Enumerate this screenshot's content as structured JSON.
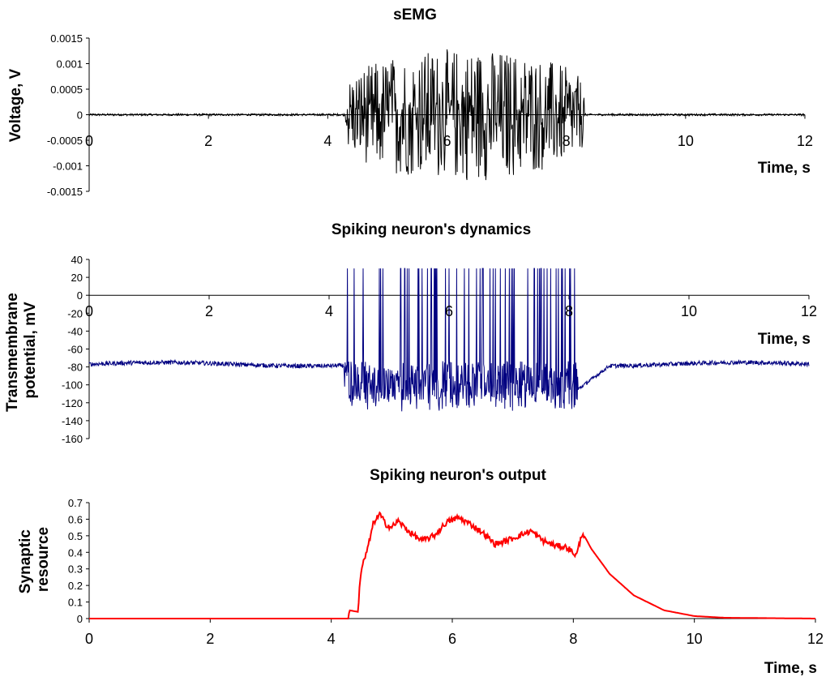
{
  "chart_data": [
    {
      "type": "line",
      "title": "sEMG",
      "ylabel": "Voltage, V",
      "xlabel": "Time, s",
      "xlim": [
        0,
        12
      ],
      "ylim": [
        -0.0015,
        0.0015
      ],
      "xticks": [
        "0",
        "2",
        "4",
        "6",
        "8",
        "10",
        "12"
      ],
      "yticks": [
        "0.0015",
        "0.001",
        "0.0005",
        "0",
        "-0.0005",
        "-0.001",
        "-0.0015"
      ],
      "color": "#000000",
      "baseline_noise": 2e-05,
      "burst": {
        "start": 4.3,
        "end": 8.3,
        "amplitude": 0.0013,
        "mean": 0
      },
      "x": [
        0,
        4.3,
        4.4,
        5.0,
        5.9,
        6.0,
        7.9,
        8.0,
        8.3,
        12
      ],
      "y": [
        0,
        0,
        0.0011,
        0.0011,
        -0.0013,
        0.00127,
        0.0011,
        -0.0011,
        0,
        0
      ]
    },
    {
      "type": "line",
      "title": "Spiking neuron's dynamics",
      "ylabel_lines": [
        "Transmembrane",
        "potential, mV"
      ],
      "xlabel": "Time, s",
      "xlim": [
        0,
        12
      ],
      "ylim": [
        -160,
        40
      ],
      "xticks": [
        "0",
        "2",
        "4",
        "6",
        "8",
        "10",
        "12"
      ],
      "yticks": [
        "40",
        "20",
        "0",
        "-20",
        "-40",
        "-60",
        "-80",
        "-100",
        "-120",
        "-140",
        "-160"
      ],
      "color": "#000080",
      "resting_level": -77,
      "spike_peak": 30,
      "burst": {
        "start": 4.25,
        "end": 8.15,
        "floor": -130,
        "mean": -95
      },
      "x": [
        0,
        2,
        3,
        4,
        4.2,
        4.25,
        6.0,
        8.15,
        8.5,
        10,
        11,
        12
      ],
      "y": [
        -77,
        -75,
        -72,
        -72,
        -75,
        30,
        -130,
        -110,
        -85,
        -80,
        -82,
        -77
      ]
    },
    {
      "type": "line",
      "title": "Spiking neuron's output",
      "ylabel_lines": [
        "Synaptic",
        "resource"
      ],
      "xlabel": "Time, s",
      "xlim": [
        0,
        12
      ],
      "ylim": [
        0,
        0.7
      ],
      "xticks": [
        "0",
        "2",
        "4",
        "6",
        "8",
        "10",
        "12"
      ],
      "yticks": [
        "0.7",
        "0.6",
        "0.5",
        "0.4",
        "0.3",
        "0.2",
        "0.1",
        "0"
      ],
      "color": "#ff0000",
      "x": [
        0,
        4.28,
        4.3,
        4.45,
        4.46,
        4.5,
        4.6,
        4.7,
        4.8,
        4.9,
        5.0,
        5.1,
        5.3,
        5.5,
        5.7,
        5.9,
        6.1,
        6.3,
        6.5,
        6.7,
        6.9,
        7.1,
        7.3,
        7.5,
        7.7,
        7.9,
        8.05,
        8.15,
        8.3,
        8.6,
        9.0,
        9.5,
        10.0,
        10.5,
        12
      ],
      "y": [
        0,
        0,
        0.05,
        0.04,
        0.18,
        0.3,
        0.42,
        0.58,
        0.63,
        0.57,
        0.55,
        0.59,
        0.52,
        0.47,
        0.5,
        0.58,
        0.61,
        0.57,
        0.52,
        0.45,
        0.47,
        0.5,
        0.53,
        0.47,
        0.44,
        0.43,
        0.38,
        0.52,
        0.42,
        0.27,
        0.14,
        0.05,
        0.015,
        0.005,
        0
      ]
    }
  ]
}
